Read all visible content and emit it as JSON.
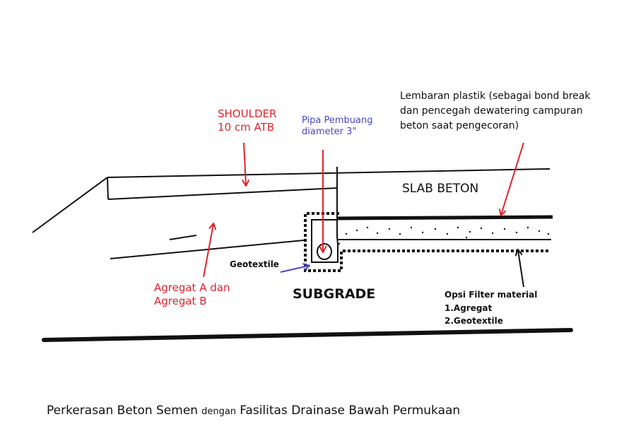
{
  "labels": {
    "shoulder_line1": "SHOULDER",
    "shoulder_line2": "10 cm ATB",
    "pipe_line1": "Pipa Pembuang",
    "pipe_line2": "diameter 3\"",
    "plastic_line1": "Lembaran plastik (sebagai bond break",
    "plastic_line2": "dan pencegah dewatering campuran",
    "plastic_line3": "beton saat pengecoran)",
    "slab": "SLAB BETON",
    "geotextile": "Geotextile",
    "agregat_line1": "Agregat A dan",
    "agregat_line2": "Agregat B",
    "subgrade": "SUBGRADE",
    "filter_line1": "Opsi Filter material",
    "filter_line2": "1.Agregat",
    "filter_line3": "2.Geotextile"
  },
  "caption": {
    "part1": "Perkerasan Beton Semen",
    "part2": "dengan",
    "part3": "Fasilitas Drainase Bawah Permukaan"
  },
  "colors": {
    "annotation_red": "#e0232b",
    "annotation_blue": "#4a47c4",
    "line": "#111111"
  }
}
